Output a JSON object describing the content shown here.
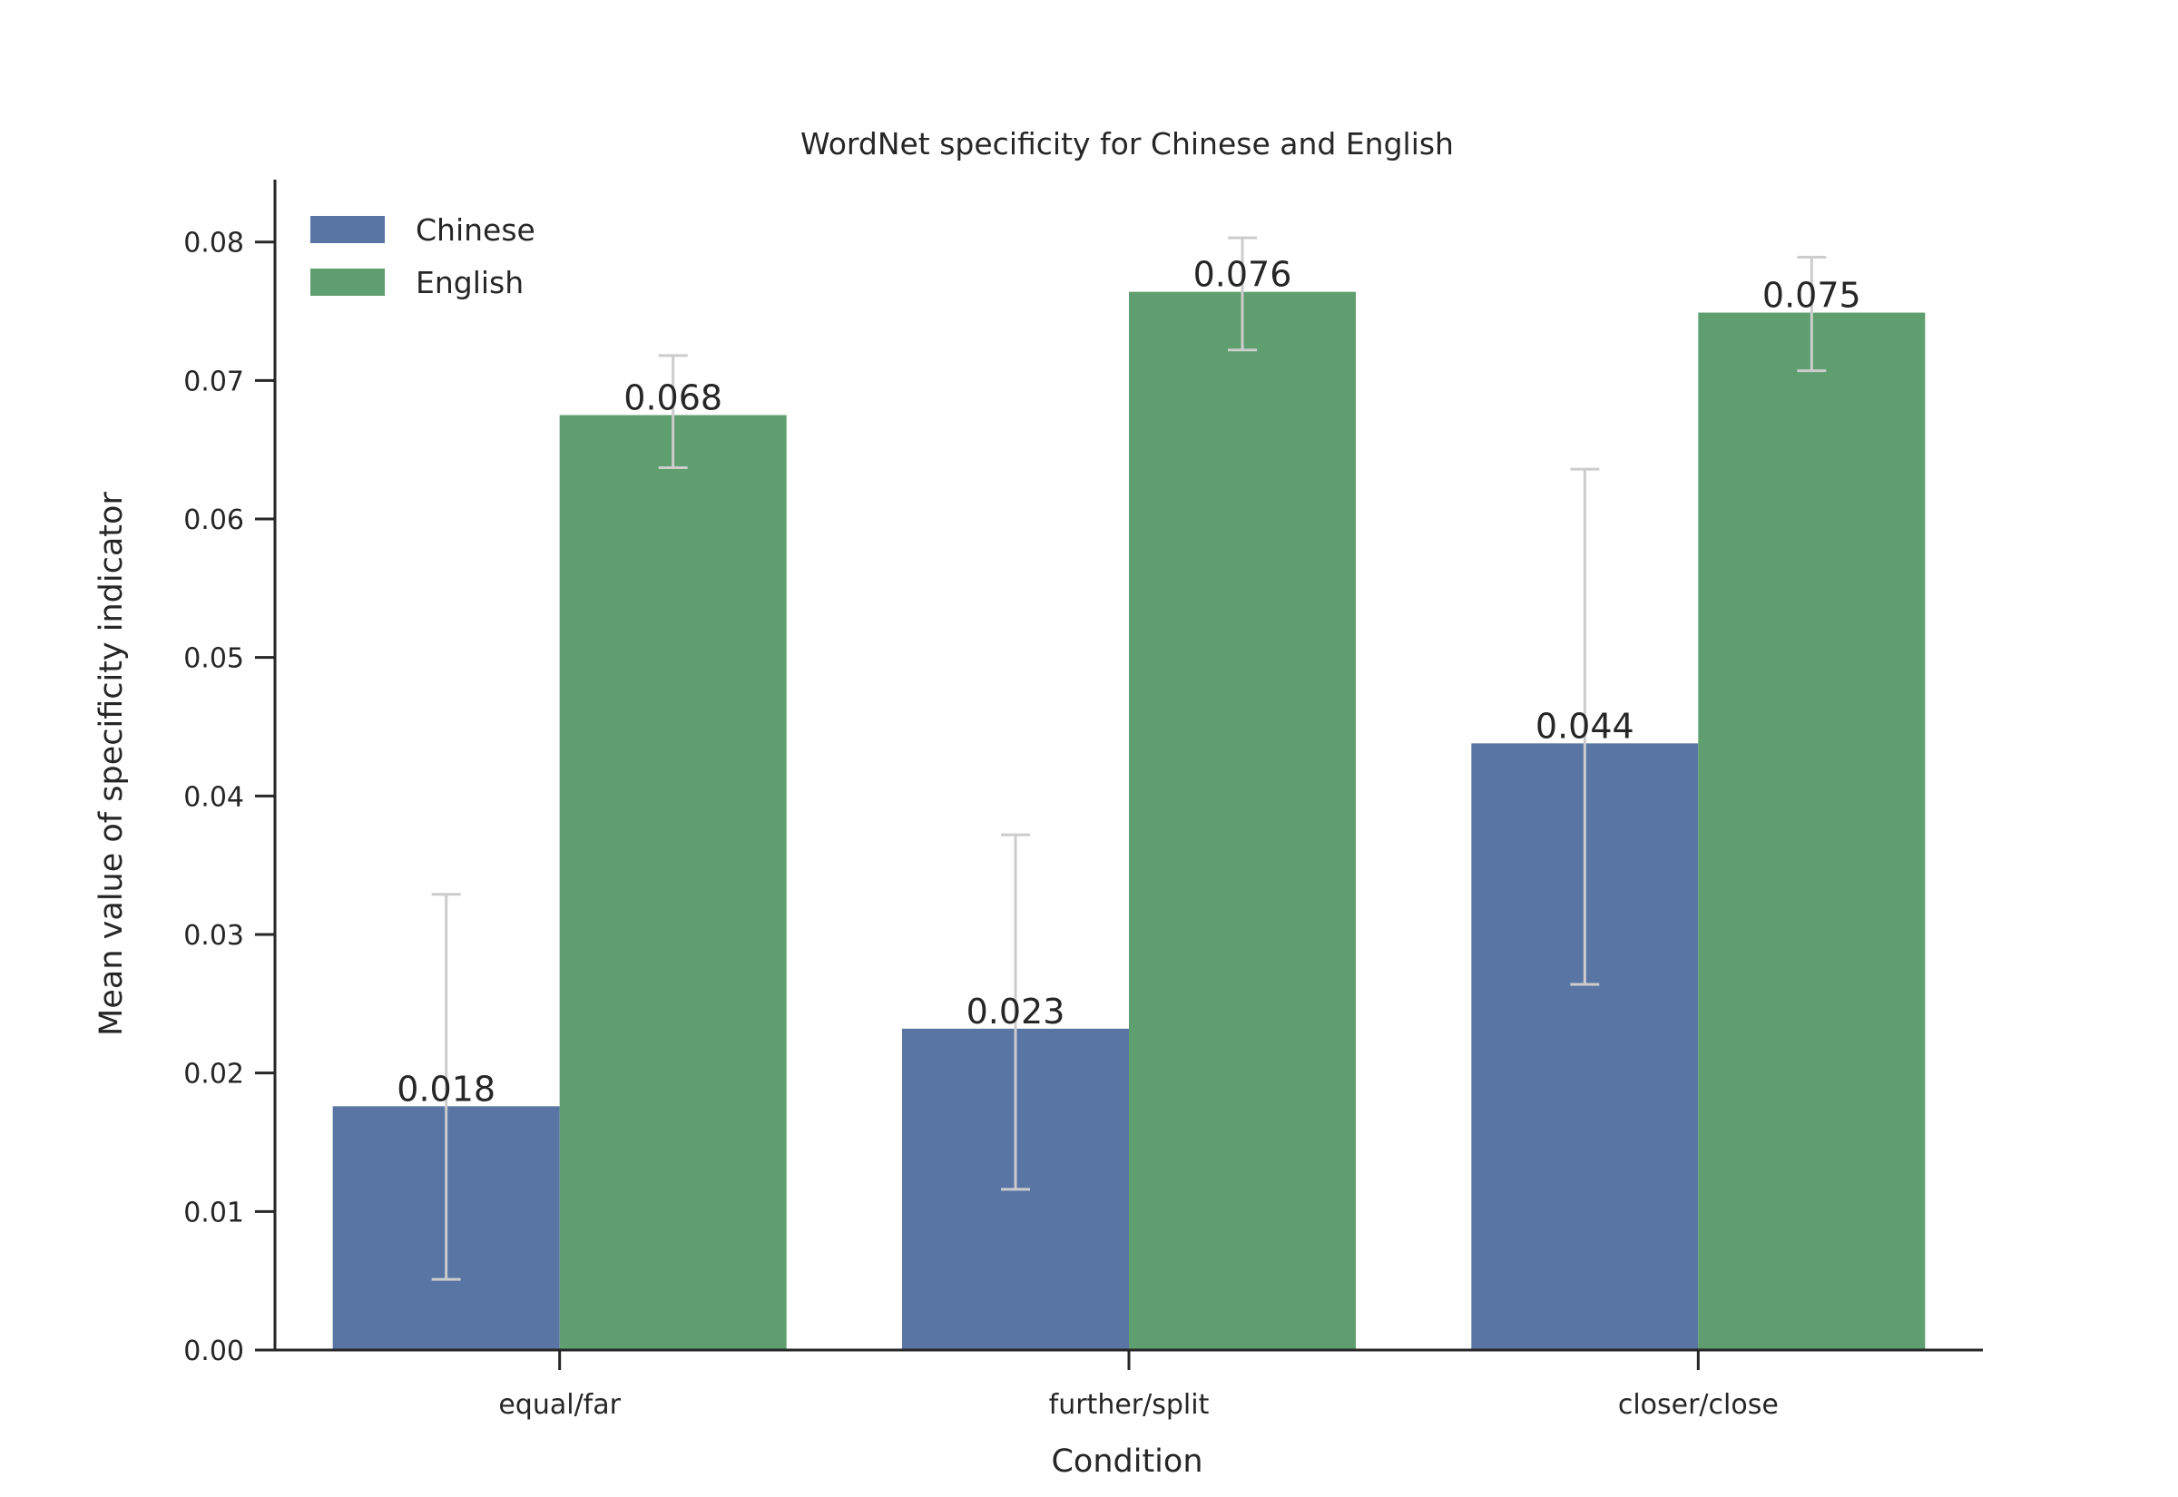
{
  "chart_data": {
    "type": "bar",
    "title": "WordNet specificity for Chinese and English",
    "xlabel": "Condition",
    "ylabel": "Mean value of specificity indicator",
    "categories": [
      "equal/far",
      "further/split",
      "closer/close"
    ],
    "ylim": [
      0,
      0.0845
    ],
    "yticks": [
      "0.00",
      "0.01",
      "0.02",
      "0.03",
      "0.04",
      "0.05",
      "0.06",
      "0.07",
      "0.08"
    ],
    "grid": false,
    "legend_position": "top-left",
    "series": [
      {
        "name": "Chinese",
        "color": "#5975a4",
        "values": [
          0.0176,
          0.0232,
          0.0438
        ],
        "labels": [
          "0.018",
          "0.023",
          "0.044"
        ],
        "error_low": [
          0.0051,
          0.0116,
          0.0264
        ],
        "error_high": [
          0.0329,
          0.0372,
          0.0636
        ]
      },
      {
        "name": "English",
        "color": "#5f9e6e",
        "values": [
          0.0675,
          0.0764,
          0.0749
        ],
        "labels": [
          "0.068",
          "0.076",
          "0.075"
        ],
        "error_low": [
          0.0637,
          0.0722,
          0.0707
        ],
        "error_high": [
          0.0718,
          0.0803,
          0.0789
        ]
      }
    ],
    "error_bar_color": "#cccccc",
    "axis_color": "#262626"
  }
}
